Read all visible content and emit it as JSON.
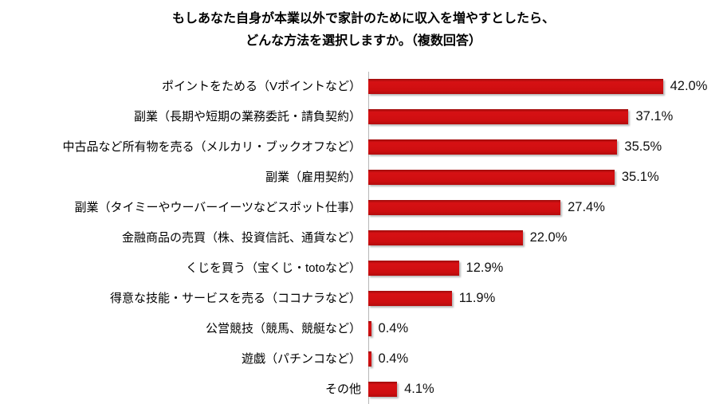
{
  "page": {
    "background_color": "#ffffff",
    "text_color": "#000000"
  },
  "chart_data": {
    "type": "bar",
    "orientation": "horizontal",
    "title_line1": "もしあなた自身が本業以外で家計のために収入を増やすとしたら、",
    "title_line2": "どんな方法を選択しますか。（複数回答）",
    "categories": [
      "ポイントをためる（Vポイントなど）",
      "副業（長期や短期の業務委託・請負契約）",
      "中古品など所有物を売る（メルカリ・ブックオフなど）",
      "副業（雇用契約）",
      "副業（タイミーやウーバーイーツなどスポット仕事）",
      "金融商品の売買（株、投資信託、通貨など）",
      "くじを買う（宝くじ・totoなど）",
      "得意な技能・サービスを売る（ココナラなど）",
      "公営競技（競馬、競艇など）",
      "遊戯（パチンコなど）",
      "その他"
    ],
    "values": [
      42.0,
      37.1,
      35.5,
      35.1,
      27.4,
      22.0,
      12.9,
      11.9,
      0.4,
      0.4,
      4.1
    ],
    "value_labels": [
      "42.0%",
      "37.1%",
      "35.5%",
      "35.1%",
      "27.4%",
      "22.0%",
      "12.9%",
      "11.9%",
      "0.4%",
      "0.4%",
      "4.1%"
    ],
    "xlabel": "",
    "ylabel": "",
    "xlim": [
      0,
      45
    ],
    "grid": false,
    "legend": "none",
    "value_axis_visible": false,
    "bar_color": "#ce0e10",
    "axis_line_color": "#b7b7b7"
  }
}
